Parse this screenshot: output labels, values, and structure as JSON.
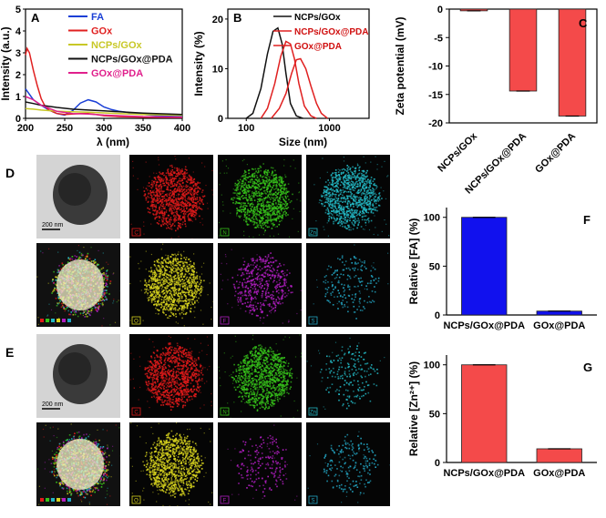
{
  "chart_data": [
    {
      "id": "A",
      "type": "line",
      "panel_label": "A",
      "xlabel": "λ (nm)",
      "ylabel": "Intensity (a.u.)",
      "xlim": [
        200,
        400
      ],
      "ylim": [
        0,
        5
      ],
      "xticks": [
        "200",
        "250",
        "300",
        "350",
        "400"
      ],
      "yticks": [
        "0",
        "1",
        "2",
        "3",
        "4",
        "5"
      ],
      "legend_position": "top-right",
      "series": [
        {
          "name": "FA",
          "color": "#1a3fd6",
          "x": [
            200,
            205,
            210,
            220,
            230,
            240,
            250,
            260,
            270,
            280,
            290,
            300,
            310,
            320,
            340,
            360,
            380,
            400
          ],
          "y": [
            1.35,
            1.1,
            0.85,
            0.6,
            0.38,
            0.22,
            0.15,
            0.35,
            0.7,
            0.85,
            0.75,
            0.52,
            0.4,
            0.32,
            0.22,
            0.15,
            0.1,
            0.08
          ]
        },
        {
          "name": "GOx",
          "color": "#e02020",
          "x": [
            200,
            202,
            205,
            210,
            215,
            220,
            225,
            230,
            240,
            250,
            260,
            270,
            280,
            290,
            300,
            320,
            350,
            400
          ],
          "y": [
            2.9,
            3.2,
            3.0,
            2.2,
            1.5,
            0.9,
            0.55,
            0.38,
            0.22,
            0.18,
            0.2,
            0.22,
            0.22,
            0.18,
            0.12,
            0.08,
            0.05,
            0.04
          ]
        },
        {
          "name": "NCPs/GOx",
          "color": "#c8c826",
          "x": [
            200,
            210,
            220,
            240,
            260,
            280,
            300,
            320,
            350,
            400
          ],
          "y": [
            0.45,
            0.42,
            0.38,
            0.33,
            0.3,
            0.28,
            0.25,
            0.22,
            0.18,
            0.14
          ]
        },
        {
          "name": "NCPs/GOx@PDA",
          "color": "#111111",
          "x": [
            200,
            210,
            220,
            240,
            260,
            280,
            300,
            320,
            350,
            400
          ],
          "y": [
            0.75,
            0.68,
            0.6,
            0.5,
            0.42,
            0.38,
            0.34,
            0.3,
            0.24,
            0.18
          ]
        },
        {
          "name": "GOx@PDA",
          "color": "#e0208c",
          "x": [
            200,
            210,
            220,
            240,
            260,
            280,
            300,
            320,
            350,
            400
          ],
          "y": [
            1.0,
            0.85,
            0.6,
            0.32,
            0.22,
            0.2,
            0.15,
            0.12,
            0.08,
            0.05
          ]
        }
      ]
    },
    {
      "id": "B",
      "type": "line",
      "panel_label": "B",
      "xlabel": "Size (nm)",
      "ylabel": "Intensity (%)",
      "xscale": "log",
      "xlim": [
        60,
        3000
      ],
      "ylim": [
        0,
        22
      ],
      "xticks": [
        "100",
        "1000"
      ],
      "yticks": [
        "0",
        "10",
        "20"
      ],
      "legend_position": "top-right",
      "series": [
        {
          "name": "NCPs/GOx",
          "color": "#111111",
          "x": [
            100,
            120,
            150,
            180,
            210,
            240,
            270,
            300,
            340,
            400,
            480
          ],
          "y": [
            0,
            1,
            6,
            13,
            17.5,
            18.2,
            15,
            9,
            3,
            0.5,
            0
          ]
        },
        {
          "name": "NCPs/GOx@PDA",
          "color": "#e02020",
          "x": [
            150,
            180,
            220,
            260,
            300,
            340,
            380,
            430,
            500,
            600,
            700
          ],
          "y": [
            0,
            2,
            7,
            12.5,
            15.5,
            15,
            12,
            7,
            2.5,
            0.5,
            0
          ]
        },
        {
          "name": "GOx@PDA",
          "color": "#e02020",
          "x": [
            200,
            250,
            300,
            350,
            400,
            450,
            520,
            600,
            700,
            800,
            950
          ],
          "y": [
            0,
            2,
            5,
            9,
            11.8,
            12,
            10,
            6.5,
            3,
            1,
            0
          ]
        }
      ]
    },
    {
      "id": "C",
      "type": "bar",
      "panel_label": "C",
      "ylabel": "Zeta potential (mV)",
      "ylim": [
        -20,
        0
      ],
      "yticks": [
        "0",
        "-5",
        "-10",
        "-15",
        "-20"
      ],
      "categories": [
        "NCPs/GOx",
        "NCPs/GOx@PDA",
        "GOx@PDA"
      ],
      "values": [
        -0.3,
        -14.4,
        -18.8
      ],
      "bar_color": "#f44a4a"
    },
    {
      "id": "F",
      "type": "bar",
      "panel_label": "F",
      "ylabel": "Relative [FA] (%)",
      "ylim": [
        0,
        110
      ],
      "yticks": [
        "0",
        "50",
        "100"
      ],
      "categories": [
        "NCPs/GOx@PDA",
        "GOx@PDA"
      ],
      "values": [
        100,
        4
      ],
      "bar_color": "#1111ee"
    },
    {
      "id": "G",
      "type": "bar",
      "panel_label": "G",
      "ylabel": "Relative [Zn²⁺] (%)",
      "ylim": [
        0,
        110
      ],
      "yticks": [
        "0",
        "50",
        "100"
      ],
      "categories": [
        "NCPs/GOx@PDA",
        "GOx@PDA"
      ],
      "values": [
        100,
        14
      ],
      "bar_color": "#f44a4a"
    }
  ],
  "panel_D": {
    "label": "D",
    "scale_bar": "200 nm",
    "tiles": [
      {
        "kind": "tem"
      },
      {
        "kind": "map",
        "letter": "C",
        "color": "#e01a1a",
        "density": "high"
      },
      {
        "kind": "map",
        "letter": "N",
        "color": "#36c21a",
        "density": "high"
      },
      {
        "kind": "map",
        "letter": "Zn",
        "color": "#23b8c4",
        "density": "high"
      },
      {
        "kind": "merge"
      },
      {
        "kind": "map",
        "letter": "O",
        "color": "#d6d21e",
        "density": "high"
      },
      {
        "kind": "map",
        "letter": "F",
        "color": "#b01ec0",
        "density": "medium"
      },
      {
        "kind": "map",
        "letter": "S",
        "color": "#23a6c4",
        "density": "low"
      }
    ]
  },
  "panel_E": {
    "label": "E",
    "scale_bar": "200 nm",
    "tiles": [
      {
        "kind": "tem"
      },
      {
        "kind": "map",
        "letter": "C",
        "color": "#e01a1a",
        "density": "high"
      },
      {
        "kind": "map",
        "letter": "N",
        "color": "#36c21a",
        "density": "high"
      },
      {
        "kind": "map",
        "letter": "Zn",
        "color": "#23b8c4",
        "density": "low"
      },
      {
        "kind": "merge"
      },
      {
        "kind": "map",
        "letter": "O",
        "color": "#d6d21e",
        "density": "high"
      },
      {
        "kind": "map",
        "letter": "F",
        "color": "#b01ec0",
        "density": "low"
      },
      {
        "kind": "map",
        "letter": "S",
        "color": "#23a6c4",
        "density": "low"
      }
    ]
  }
}
